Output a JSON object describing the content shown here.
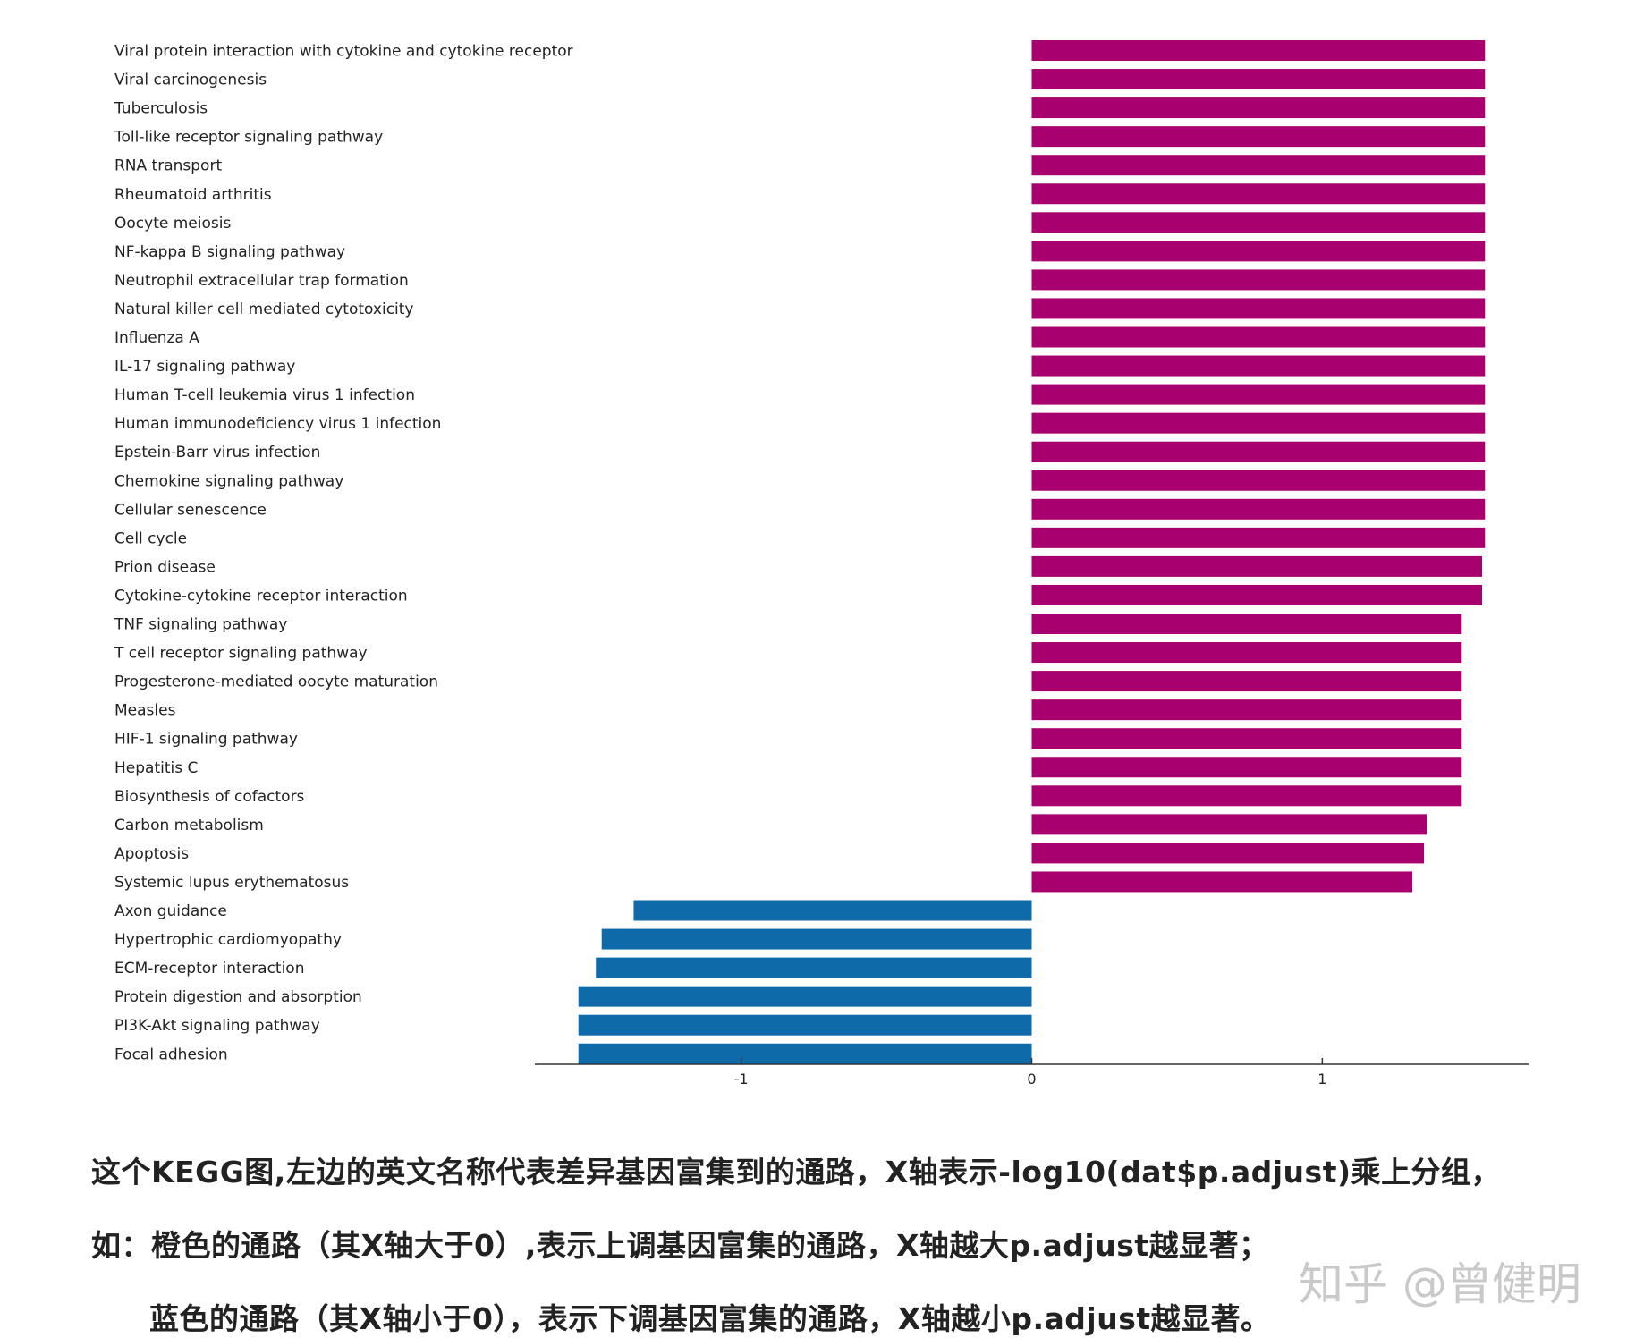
{
  "chart_data": {
    "type": "bar",
    "orientation": "horizontal",
    "categories": [
      "Viral protein interaction with cytokine and cytokine receptor",
      "Viral carcinogenesis",
      "Tuberculosis",
      "Toll-like receptor signaling pathway",
      "RNA transport",
      "Rheumatoid arthritis",
      "Oocyte meiosis",
      "NF-kappa B signaling pathway",
      "Neutrophil extracellular trap formation",
      "Natural killer cell mediated cytotoxicity",
      "Influenza A",
      "IL-17 signaling pathway",
      "Human T-cell leukemia virus 1 infection",
      "Human immunodeficiency virus 1 infection",
      "Epstein-Barr virus infection",
      "Chemokine signaling pathway",
      "Cellular senescence",
      "Cell cycle",
      "Prion disease",
      "Cytokine-cytokine receptor interaction",
      "TNF signaling pathway",
      "T cell receptor signaling pathway",
      "Progesterone-mediated oocyte maturation",
      "Measles",
      "HIF-1 signaling pathway",
      "Hepatitis C",
      "Biosynthesis of cofactors",
      "Carbon metabolism",
      "Apoptosis",
      "Systemic lupus erythematosus",
      "Axon guidance",
      "Hypertrophic cardiomyopathy",
      "ECM-receptor interaction",
      "Protein digestion and absorption",
      "PI3K-Akt signaling pathway",
      "Focal adhesion"
    ],
    "values": [
      1.56,
      1.56,
      1.56,
      1.56,
      1.56,
      1.56,
      1.56,
      1.56,
      1.56,
      1.56,
      1.56,
      1.56,
      1.56,
      1.56,
      1.56,
      1.56,
      1.56,
      1.56,
      1.55,
      1.55,
      1.48,
      1.48,
      1.48,
      1.48,
      1.48,
      1.48,
      1.48,
      1.36,
      1.35,
      1.31,
      -1.37,
      -1.48,
      -1.5,
      -1.56,
      -1.56,
      -1.56
    ],
    "xlim": [
      -1.71,
      1.71
    ],
    "xticks": [
      "-1",
      "0",
      "1"
    ],
    "xtick_values": [
      -1,
      0,
      1
    ],
    "colors": {
      "positive": "#a8006e",
      "negative": "#0e6aa8"
    },
    "grid": false,
    "legend": "none"
  },
  "caption": {
    "line1": "这个KEGG图,左边的英文名称代表差异基因富集到的通路，X轴表示-log10(dat$p.adjust)乘上分组，",
    "line2": "如：橙色的通路（其X轴大于0）,表示上调基因富集的通路，X轴越大p.adjust越显著；",
    "line3": "蓝色的通路（其X轴小于0），表示下调基因富集的通路，X轴越小p.adjust越显著。"
  },
  "watermark": "知乎 @曾健明"
}
